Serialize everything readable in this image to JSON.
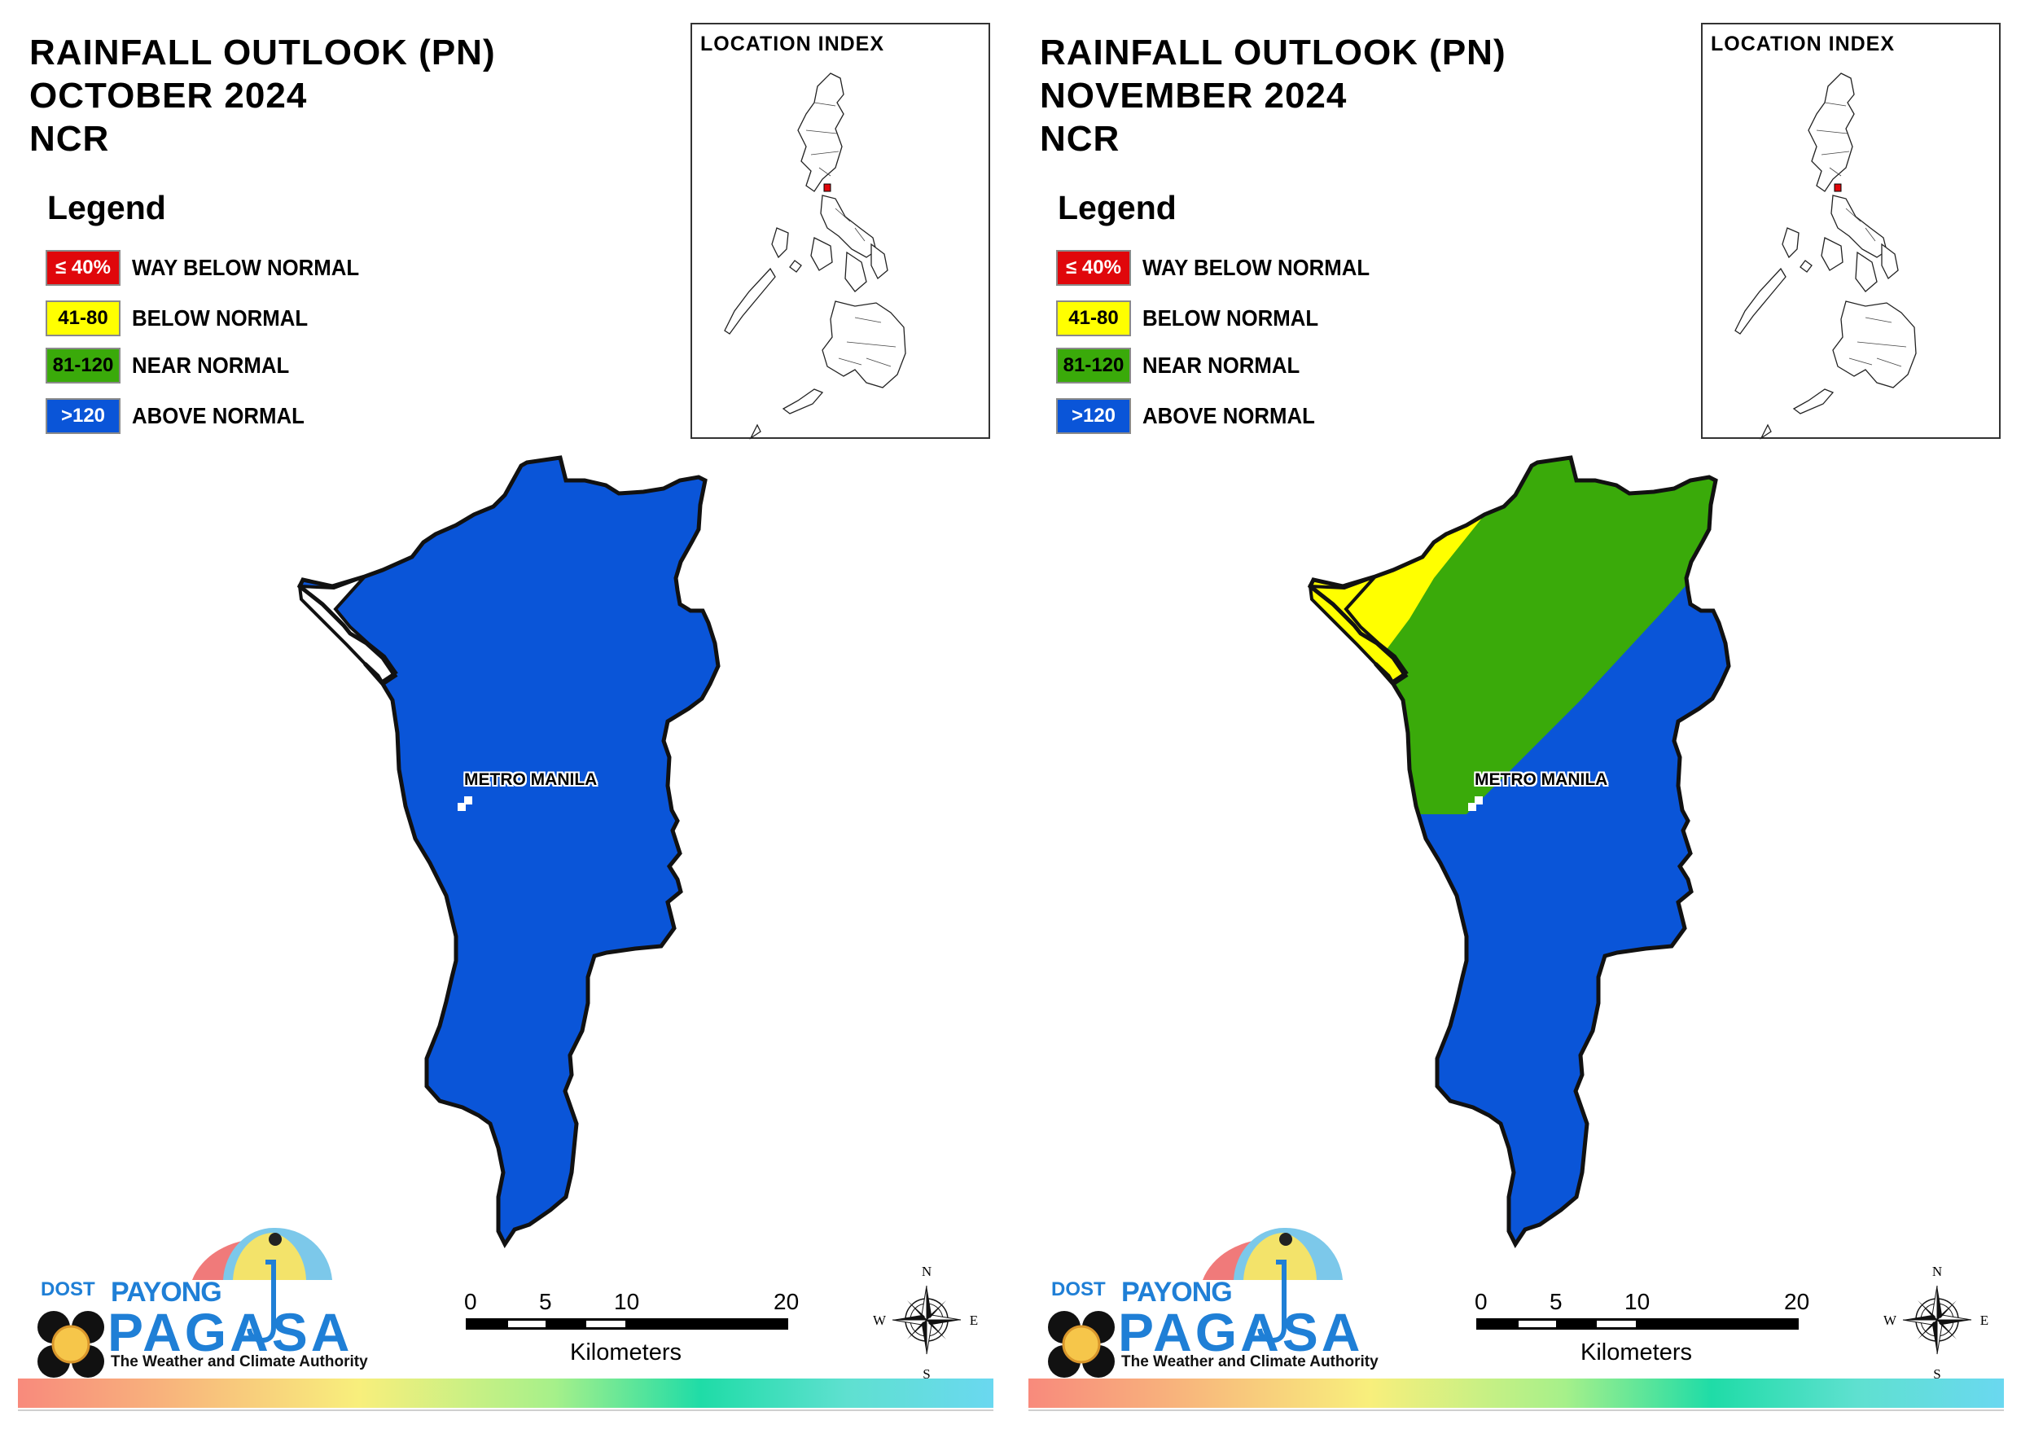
{
  "panels": [
    {
      "title_line1": "RAINFALL OUTLOOK (PN)",
      "title_line2": "OCTOBER 2024",
      "title_line3": "NCR",
      "region_label": "METRO MANILA",
      "category_pattern": "all_above_normal"
    },
    {
      "title_line1": "RAINFALL OUTLOOK (PN)",
      "title_line2": "NOVEMBER 2024",
      "title_line3": "NCR",
      "region_label": "METRO MANILA",
      "category_pattern": "north_below_near_south_above"
    }
  ],
  "legend": {
    "title": "Legend",
    "items": [
      {
        "range": "≤ 40%",
        "label": "WAY BELOW NORMAL",
        "color": "#e0070b",
        "text_color": "#ffffff"
      },
      {
        "range": "41-80",
        "label": "BELOW NORMAL",
        "color": "#ffff00",
        "text_color": "#000000"
      },
      {
        "range": "81-120",
        "label": "NEAR NORMAL",
        "color": "#3aaa0a",
        "text_color": "#000000"
      },
      {
        "range": ">120",
        "label": "ABOVE NORMAL",
        "color": "#0a55d8",
        "text_color": "#ffffff"
      }
    ]
  },
  "location_index": {
    "title": "LOCATION INDEX"
  },
  "scalebar": {
    "ticks": [
      "0",
      "5",
      "10",
      "20"
    ],
    "unit": "Kilometers"
  },
  "compass": {
    "n": "N",
    "s": "S",
    "e": "E",
    "w": "W"
  },
  "logo": {
    "dost": "DOST",
    "payong": "PAYONG",
    "pagasa": "PAGASA",
    "tagline": "The Weather and Climate Authority"
  },
  "colors": {
    "above_normal": "#0a55d8",
    "near_normal": "#3aaa0a",
    "below_normal": "#ffff00",
    "way_below_normal": "#e0070b",
    "outline": "#111111"
  }
}
